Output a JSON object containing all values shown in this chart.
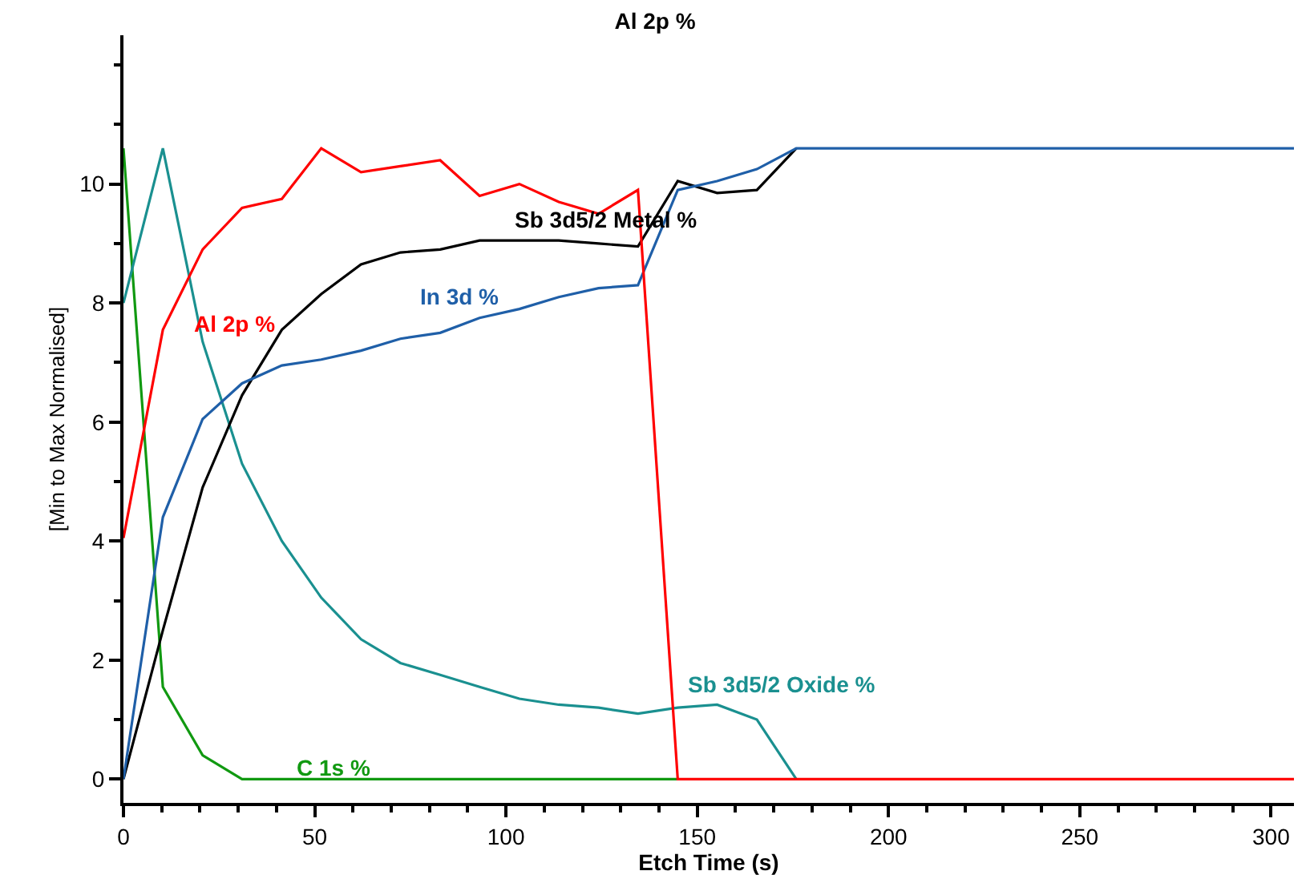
{
  "chart_data": {
    "type": "line",
    "title": "Al 2p %",
    "xlabel": "Etch Time (s)",
    "ylabel": "[Min to Max Normalised]",
    "x": [
      0,
      10.3,
      20.7,
      31.0,
      41.4,
      51.7,
      62.1,
      72.4,
      82.8,
      93.1,
      103.5,
      113.8,
      124.2,
      134.5,
      144.9,
      155.2,
      165.6,
      175.9,
      217.3,
      258.7,
      306
    ],
    "series": [
      {
        "name": "C 1s %",
        "color": "#119911",
        "values": [
          10.6,
          1.55,
          0.4,
          0,
          0,
          0,
          0,
          0,
          0,
          0,
          0,
          0,
          0,
          0,
          0,
          null,
          null,
          null,
          null,
          null,
          null
        ]
      },
      {
        "name": "Sb 3d5/2 Oxide %",
        "color": "#1a9090",
        "values": [
          8.0,
          10.6,
          7.35,
          5.3,
          4.0,
          3.05,
          2.35,
          1.95,
          1.75,
          1.55,
          1.35,
          1.25,
          1.2,
          1.1,
          1.2,
          1.25,
          1.0,
          0,
          null,
          null,
          null
        ]
      },
      {
        "name": "Sb 3d5/2 Metal %",
        "color": "#000000",
        "values": [
          0,
          2.5,
          4.9,
          6.45,
          7.55,
          8.15,
          8.65,
          8.85,
          8.9,
          9.05,
          9.05,
          9.05,
          9.0,
          8.95,
          10.05,
          9.85,
          9.9,
          10.6,
          null,
          null,
          null
        ]
      },
      {
        "name": "In 3d %",
        "color": "#1f5fa8",
        "values": [
          0,
          4.4,
          6.05,
          6.65,
          6.95,
          7.05,
          7.2,
          7.4,
          7.5,
          7.75,
          7.9,
          8.1,
          8.25,
          8.3,
          9.9,
          10.05,
          10.25,
          10.6,
          10.6,
          10.6,
          10.6
        ]
      },
      {
        "name": "Al 2p %",
        "color": "#ff0000",
        "values": [
          4.05,
          7.55,
          8.9,
          9.6,
          9.75,
          10.6,
          10.2,
          10.3,
          10.4,
          9.8,
          10.0,
          9.7,
          9.5,
          9.9,
          0,
          0,
          0,
          0,
          0,
          0,
          0
        ]
      }
    ],
    "xlim": [
      0,
      306
    ],
    "ylim": [
      -0.4,
      12.5
    ],
    "xticks": [
      0,
      {
        "value": 10,
        "label": null
      },
      {
        "value": 20,
        "label": null
      },
      {
        "value": 30,
        "label": null
      },
      {
        "value": 40,
        "label": null
      },
      50,
      {
        "value": 60,
        "label": null
      },
      {
        "value": 70,
        "label": null
      },
      {
        "value": 80,
        "label": null
      },
      {
        "value": 90,
        "label": null
      },
      100,
      {
        "value": 110,
        "label": null
      },
      {
        "value": 120,
        "label": null
      },
      {
        "value": 130,
        "label": null
      },
      {
        "value": 140,
        "label": null
      },
      150,
      {
        "value": 160,
        "label": null
      },
      {
        "value": 170,
        "label": null
      },
      {
        "value": 180,
        "label": null
      },
      {
        "value": 190,
        "label": null
      },
      200,
      {
        "value": 210,
        "label": null
      },
      {
        "value": 220,
        "label": null
      },
      {
        "value": 230,
        "label": null
      },
      {
        "value": 240,
        "label": null
      },
      250,
      {
        "value": 260,
        "label": null
      },
      {
        "value": 270,
        "label": null
      },
      {
        "value": 280,
        "label": null
      },
      {
        "value": 290,
        "label": null
      },
      300
    ],
    "yticks": [
      0,
      {
        "value": 1,
        "label": null
      },
      2,
      {
        "value": 3,
        "label": null
      },
      4,
      {
        "value": 5,
        "label": null
      },
      6,
      {
        "value": 7,
        "label": null
      },
      8,
      {
        "value": 9,
        "label": null
      },
      10,
      {
        "value": 11,
        "label": null
      },
      {
        "value": 12,
        "label": null
      }
    ],
    "grid": false,
    "legend": false,
    "marker": "none",
    "line_style": "solid"
  }
}
